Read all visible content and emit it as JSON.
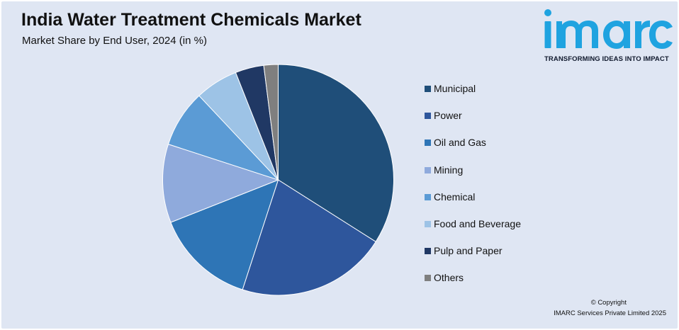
{
  "header": {
    "title": "India Water Treatment Chemicals Market",
    "subtitle": "Market Share by End User, 2024 (in %)"
  },
  "logo": {
    "wordmark": "imarc",
    "tagline": "TRANSFORMING IDEAS INTO IMPACT",
    "color": "#1fa3e0"
  },
  "footer": {
    "copyright": "© Copyright",
    "company": "IMARC Services Private Limited 2025"
  },
  "chart_data": {
    "type": "pie",
    "title": "India Water Treatment Chemicals Market",
    "subtitle": "Market Share by End User, 2024 (in %)",
    "legend_position": "right",
    "start_angle_deg": 0,
    "direction": "clockwise",
    "slices": [
      {
        "label": "Municipal",
        "value": 34,
        "color": "#1f4e79"
      },
      {
        "label": "Power",
        "value": 21,
        "color": "#2e569c"
      },
      {
        "label": "Oil and Gas",
        "value": 14,
        "color": "#2e75b6"
      },
      {
        "label": "Mining",
        "value": 11,
        "color": "#8faadc"
      },
      {
        "label": "Chemical",
        "value": 8,
        "color": "#5b9bd5"
      },
      {
        "label": "Food and Beverage",
        "value": 6,
        "color": "#9dc3e6"
      },
      {
        "label": "Pulp and Paper",
        "value": 4,
        "color": "#203864"
      },
      {
        "label": "Others",
        "value": 2,
        "color": "#7f7f7f"
      }
    ]
  }
}
